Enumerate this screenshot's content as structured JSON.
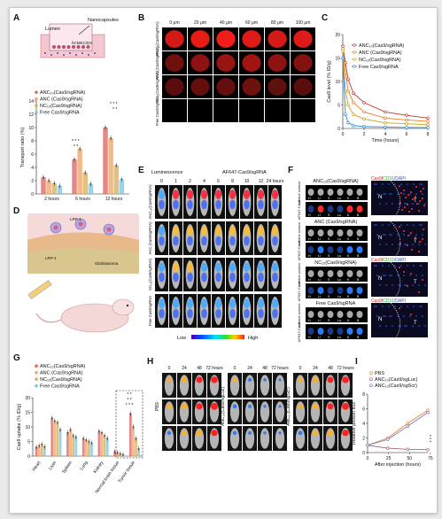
{
  "panels": {
    "A": {
      "letter": "A",
      "schematic": {
        "nanocapsules": "Nanocapsules",
        "lumen": "Lumen",
        "cell": "hCMEC/D3"
      },
      "chart_data": {
        "type": "bar",
        "ylabel": "Transport ratio (%)",
        "xlabel": "",
        "ylim": [
          0,
          14
        ],
        "yticks": [
          "0",
          "2",
          "4",
          "6",
          "8",
          "10",
          "12",
          "14"
        ],
        "categories": [
          "2 hours",
          "6 hours",
          "12 hours"
        ],
        "series": [
          {
            "name": "ANC₁₀(Cas9/sgRNA)",
            "color": "#e06a6a",
            "values": [
              2.5,
              5.2,
              10.0
            ]
          },
          {
            "name": "ANC (Cas9/sgRNA)",
            "color": "#f0a868",
            "values": [
              2.0,
              6.8,
              8.4
            ]
          },
          {
            "name": "NC₁₀(Cas9/sgRNA)",
            "color": "#d9b25e",
            "values": [
              1.6,
              3.2,
              4.3
            ]
          },
          {
            "name": "Free Cas9/sgRNA",
            "color": "#7ec8e6",
            "values": [
              1.2,
              1.5,
              2.2
            ]
          }
        ],
        "significance": [
          "* * *",
          "* *",
          "* * *",
          "* *"
        ]
      }
    },
    "B": {
      "letter": "B",
      "depths": [
        "0 μm",
        "20 μm",
        "40 μm",
        "60 μm",
        "80 μm",
        "100 μm"
      ],
      "rows": [
        "ANC₁₀(Cas9/sgRNA)",
        "ANC (Cas9/sgRNA)",
        "NC₁₀(Cas9/sgRNA)",
        "Free Cas9/sgRNA"
      ],
      "intensity": [
        [
          0.85,
          0.95,
          1.0,
          0.9,
          0.85,
          0.9
        ],
        [
          0.35,
          0.5,
          0.55,
          0.6,
          0.5,
          0.45
        ],
        [
          0.25,
          0.3,
          0.3,
          0.35,
          0.28,
          0.25
        ],
        [
          0,
          0,
          0,
          0,
          0,
          0
        ]
      ]
    },
    "C": {
      "letter": "C",
      "chart_data": {
        "type": "line",
        "xlabel": "Time (hours)",
        "ylabel": "Cas9 level (% ID/g)",
        "xlim": [
          0,
          8
        ],
        "ylim": [
          0,
          20
        ],
        "xticks": [
          "0",
          "2",
          "4",
          "6",
          "8"
        ],
        "yticks": [
          "0",
          "5",
          "10",
          "15",
          "20"
        ],
        "x": [
          0,
          0.25,
          0.5,
          1,
          2,
          4,
          6,
          8
        ],
        "series": [
          {
            "name": "ANC₁₀(Cas9/sgRNA)",
            "color": "#c0392b",
            "values": [
              17.5,
              14,
              10.5,
              7.5,
              5.5,
              3.5,
              2.8,
              2.2
            ]
          },
          {
            "name": "ANC (Cas9/sgRNA)",
            "color": "#e67e22",
            "values": [
              17,
              12,
              8,
              5.5,
              3.5,
              2.2,
              1.8,
              1.5
            ]
          },
          {
            "name": "NC₁₀(Cas9/sgRNA)",
            "color": "#d4a017",
            "values": [
              16.5,
              8,
              5,
              3,
              2,
              1.2,
              1.0,
              0.8
            ]
          },
          {
            "name": "Free Cas9/sgRNA",
            "color": "#2e86de",
            "values": [
              15,
              3,
              1.2,
              0.6,
              0.4,
              0.3,
              0.2,
              0.2
            ]
          }
        ]
      }
    },
    "D": {
      "letter": "D",
      "labels": {
        "lrp": "LRP-1",
        "glio": "Glioblastoma",
        "lrp2": "LRP-1"
      }
    },
    "E": {
      "letter": "E",
      "header_left": "Luminescence",
      "header_right": "AF647-Cas9/sgRNA",
      "times": [
        "0",
        "1",
        "2",
        "4",
        "6",
        "8",
        "10",
        "12",
        "24 hours"
      ],
      "rows": [
        "ANC₁₀(Cas9/sgRNA)",
        "ANC (Cas9/sgRNA)",
        "NC₁₀(Cas9/sgRNA)",
        "Free Cas9/sgRNA"
      ],
      "row_intensity": [
        0.9,
        0.6,
        0.45,
        0.3
      ],
      "scale_low": "Low",
      "scale_high": "High"
    },
    "F": {
      "letter": "F",
      "groups": [
        "ANC₁₀(Cas9/sgRNA)",
        "ANC (Cas9/sgRNA)",
        "NC₁₀(Cas9/sgRNA)",
        "Free Cas9/sgRNA"
      ],
      "row_labels": [
        "Lumine scence",
        "AF647-Cas9"
      ],
      "organ_letters": [
        "H",
        "Li",
        "S",
        "Lu",
        "K",
        "B"
      ],
      "stain_parts": [
        "Cas9",
        "/",
        "CD31",
        "/DAPI"
      ],
      "zones": [
        "N",
        "T"
      ]
    },
    "G": {
      "letter": "G",
      "chart_data": {
        "type": "bar",
        "ylabel": "Cas9 uptake (% ID/g)",
        "xlabel": "",
        "ylim": [
          0,
          20
        ],
        "yticks": [
          "0",
          "5",
          "10",
          "15",
          "20"
        ],
        "categories": [
          "Heart",
          "Liver",
          "Spleen",
          "Lung",
          "Kidney",
          "Normal brain tissue",
          "Tumor tissue"
        ],
        "series": [
          {
            "name": "ANC₁₀(Cas9/sgRNA)",
            "color": "#e06a6a",
            "values": [
              3.0,
              13.0,
              8.0,
              6.0,
              8.5,
              1.5,
              14.5
            ]
          },
          {
            "name": "ANC (Cas9/sgRNA)",
            "color": "#f0a868",
            "values": [
              3.5,
              12.0,
              9.0,
              5.5,
              8.0,
              1.2,
              10.0
            ]
          },
          {
            "name": "NC₁₀(Cas9/sgRNA)",
            "color": "#d9b25e",
            "values": [
              4.0,
              11.5,
              7.0,
              5.0,
              7.0,
              0.8,
              6.0
            ]
          },
          {
            "name": "Free Cas9/sgRNA",
            "color": "#7ec8e6",
            "values": [
              3.2,
              9.0,
              6.5,
              4.5,
              6.0,
              0.5,
              2.5
            ]
          }
        ],
        "significance": [
          "* *",
          "* *",
          "* * *"
        ]
      }
    },
    "H": {
      "letter": "H",
      "times": [
        "0",
        "24",
        "48",
        "72 hours"
      ],
      "groups": [
        "PBS",
        "ANC₁₀(Cas9/sgLuc)",
        "ANC₁₀(Cas9/sgScr)"
      ],
      "intensity": [
        [
          [
            0.4,
            0.6,
            0.8,
            0.9
          ],
          [
            0.5,
            0.7,
            0.85,
            1.0
          ],
          [
            0.3,
            0.5,
            0.7,
            0.85
          ]
        ],
        [
          [
            0.4,
            0.25,
            0.12,
            0.05
          ],
          [
            0.35,
            0.2,
            0.1,
            0.05
          ],
          [
            0.3,
            0.18,
            0.08,
            0.04
          ]
        ],
        [
          [
            0.4,
            0.6,
            0.75,
            0.9
          ],
          [
            0.45,
            0.6,
            0.8,
            0.95
          ],
          [
            0.35,
            0.55,
            0.7,
            0.85
          ]
        ]
      ]
    },
    "I": {
      "letter": "I",
      "chart_data": {
        "type": "line",
        "xlabel": "After injection (hours)",
        "ylabel": "Relative photon flux",
        "xlim": [
          0,
          72
        ],
        "ylim": [
          0,
          8
        ],
        "xticks": [
          "0",
          "25",
          "50",
          "75"
        ],
        "yticks": [
          "0",
          "2",
          "4",
          "6",
          "8"
        ],
        "x": [
          0,
          24,
          48,
          72
        ],
        "series": [
          {
            "name": "PBS",
            "color": "#e08a3a",
            "values": [
              1.0,
              2.0,
              4.0,
              5.8
            ]
          },
          {
            "name": "ANC₁₀(Cas9/sgLuc)",
            "color": "#b0607a",
            "values": [
              1.0,
              0.6,
              0.45,
              0.4
            ]
          },
          {
            "name": "ANC₁₀(Cas9/sgScr)",
            "color": "#7c7cc8",
            "values": [
              1.0,
              1.8,
              3.6,
              5.5
            ]
          }
        ],
        "significance": "* * *"
      }
    }
  }
}
